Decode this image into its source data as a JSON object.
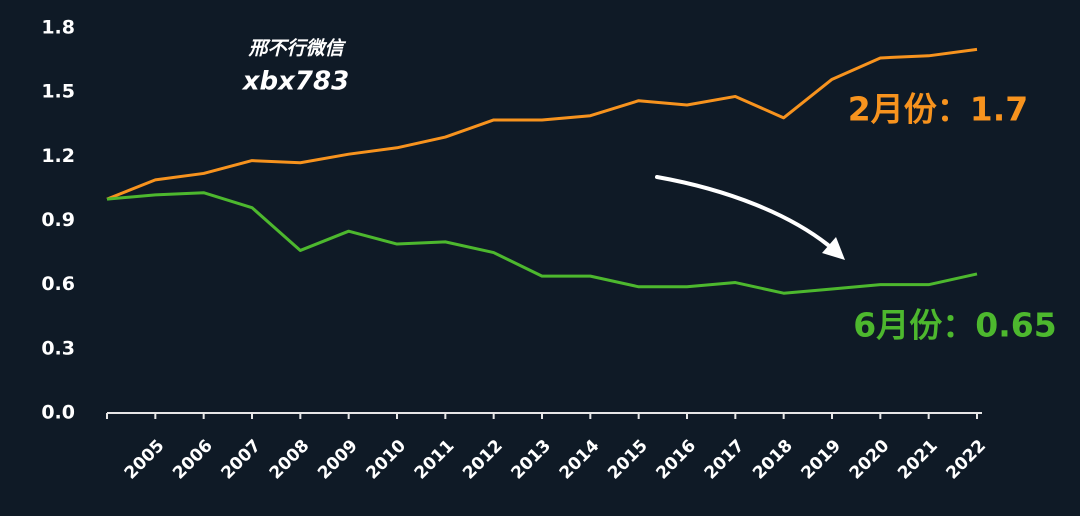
{
  "chart_data": {
    "type": "line",
    "categories": [
      null,
      "2005",
      "2006",
      "2007",
      "2008",
      "2009",
      "2010",
      "2011",
      "2012",
      "2013",
      "2014",
      "2015",
      "2016",
      "2017",
      "2018",
      "2019",
      "2020",
      "2021",
      "2022"
    ],
    "series": [
      {
        "color": "#f7931e",
        "values": [
          1.0,
          1.09,
          1.12,
          1.18,
          1.17,
          1.21,
          1.24,
          1.29,
          1.37,
          1.37,
          1.39,
          1.46,
          1.44,
          1.48,
          1.38,
          1.56,
          1.66,
          1.67,
          1.7
        ]
      },
      {
        "color": "#4db82e",
        "values": [
          1.0,
          1.02,
          1.03,
          0.96,
          0.76,
          0.85,
          0.79,
          0.8,
          0.75,
          0.64,
          0.64,
          0.59,
          0.59,
          0.61,
          0.56,
          0.58,
          0.6,
          0.6,
          0.65
        ]
      }
    ],
    "ylim": [
      0,
      1.8
    ],
    "yticks": [
      {
        "value": 0,
        "label": "0.0"
      },
      0.3,
      0.6,
      0.9,
      1.2,
      1.5,
      1.8
    ],
    "annotations": [
      "邢不行微信",
      "xbx783",
      "2月份：1.7",
      "6月份：0.65"
    ]
  }
}
